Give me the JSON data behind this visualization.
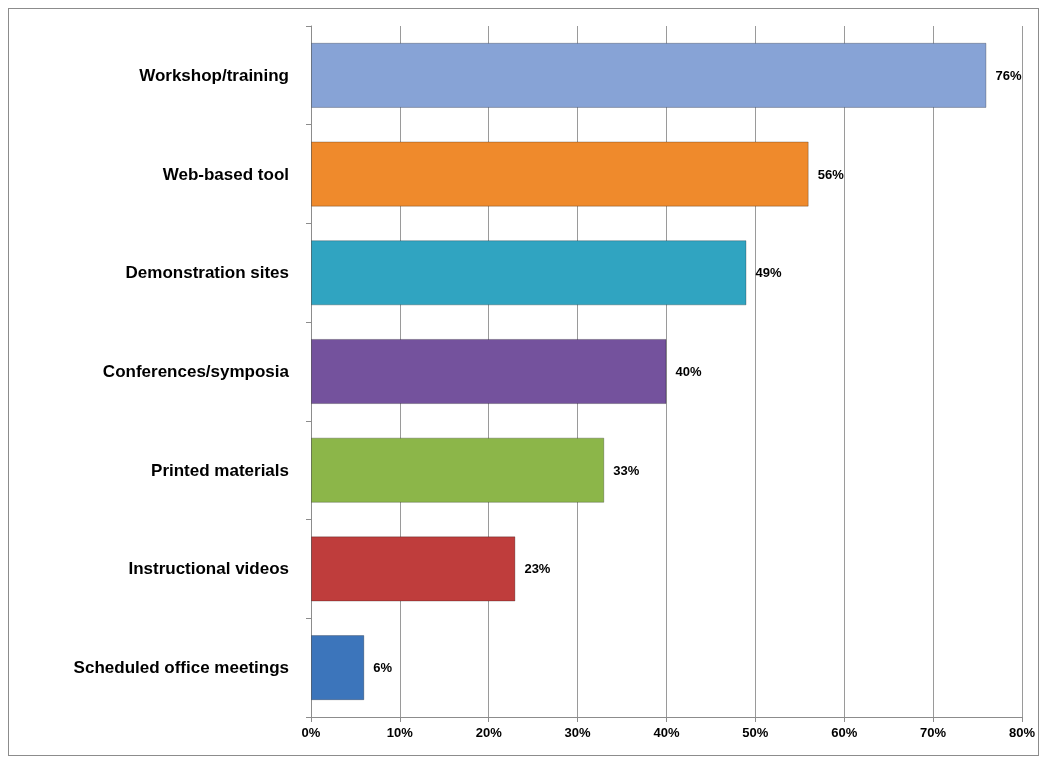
{
  "chart_data": {
    "type": "bar",
    "orientation": "horizontal",
    "categories": [
      "Workshop/training",
      "Web-based tool",
      "Demonstration sites",
      "Conferences/symposia",
      "Printed materials",
      "Instructional videos",
      "Scheduled office meetings"
    ],
    "values": [
      76,
      56,
      49,
      40,
      33,
      23,
      6
    ],
    "colors": [
      "#87a3d6",
      "#ef8a2c",
      "#30a4c1",
      "#74529d",
      "#8cb649",
      "#bf3d3c",
      "#3c75bb"
    ],
    "value_labels": [
      "76%",
      "56%",
      "49%",
      "40%",
      "33%",
      "23%",
      "6%"
    ],
    "xlim": [
      0,
      80
    ],
    "xticks": [
      {
        "value": 0,
        "label": "0%"
      },
      {
        "value": 10,
        "label": "10%"
      },
      {
        "value": 20,
        "label": "20%"
      },
      {
        "value": 30,
        "label": "30%"
      },
      {
        "value": 40,
        "label": "40%"
      },
      {
        "value": 50,
        "label": "50%"
      },
      {
        "value": 60,
        "label": "60%"
      },
      {
        "value": 70,
        "label": "70%"
      },
      {
        "value": 80,
        "label": "80%"
      }
    ],
    "grid": "x"
  }
}
